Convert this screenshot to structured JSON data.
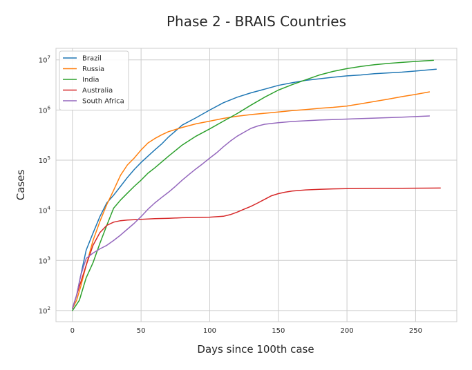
{
  "chart_data": {
    "type": "line",
    "title": "Phase 2 - BRAIS Countries",
    "xlabel": "Days since 100th case",
    "ylabel": "Cases",
    "xlim": [
      -12,
      280
    ],
    "ylim": [
      60,
      17000000
    ],
    "yscale": "log",
    "grid": true,
    "legend_position": "top-left",
    "xticks": [
      0,
      50,
      100,
      150,
      200,
      250
    ],
    "yticks": [
      {
        "value": 100,
        "base": "10",
        "exp": "2"
      },
      {
        "value": 1000,
        "base": "10",
        "exp": "3"
      },
      {
        "value": 10000,
        "base": "10",
        "exp": "4"
      },
      {
        "value": 100000,
        "base": "10",
        "exp": "5"
      },
      {
        "value": 1000000,
        "base": "10",
        "exp": "6"
      },
      {
        "value": 10000000,
        "base": "10",
        "exp": "7"
      }
    ],
    "series": [
      {
        "name": "Brazil",
        "color": "#1f77b4",
        "points": [
          [
            0,
            110
          ],
          [
            3,
            200
          ],
          [
            6,
            500
          ],
          [
            10,
            1600
          ],
          [
            15,
            3500
          ],
          [
            20,
            7500
          ],
          [
            25,
            14000
          ],
          [
            30,
            20000
          ],
          [
            35,
            30000
          ],
          [
            40,
            45000
          ],
          [
            45,
            65000
          ],
          [
            50,
            90000
          ],
          [
            55,
            120000
          ],
          [
            60,
            160000
          ],
          [
            65,
            210000
          ],
          [
            70,
            290000
          ],
          [
            75,
            380000
          ],
          [
            80,
            500000
          ],
          [
            90,
            700000
          ],
          [
            100,
            1000000
          ],
          [
            110,
            1400000
          ],
          [
            120,
            1800000
          ],
          [
            130,
            2200000
          ],
          [
            140,
            2600000
          ],
          [
            150,
            3100000
          ],
          [
            160,
            3500000
          ],
          [
            170,
            3900000
          ],
          [
            180,
            4200000
          ],
          [
            190,
            4500000
          ],
          [
            200,
            4800000
          ],
          [
            210,
            5000000
          ],
          [
            220,
            5300000
          ],
          [
            230,
            5500000
          ],
          [
            240,
            5700000
          ],
          [
            250,
            6000000
          ],
          [
            265,
            6500000
          ]
        ]
      },
      {
        "name": "Russia",
        "color": "#ff7f0e",
        "points": [
          [
            0,
            110
          ],
          [
            3,
            160
          ],
          [
            6,
            300
          ],
          [
            10,
            800
          ],
          [
            15,
            2500
          ],
          [
            20,
            6000
          ],
          [
            25,
            13000
          ],
          [
            30,
            25000
          ],
          [
            35,
            50000
          ],
          [
            40,
            80000
          ],
          [
            45,
            110000
          ],
          [
            50,
            160000
          ],
          [
            55,
            220000
          ],
          [
            60,
            270000
          ],
          [
            65,
            320000
          ],
          [
            70,
            370000
          ],
          [
            80,
            450000
          ],
          [
            90,
            530000
          ],
          [
            100,
            600000
          ],
          [
            110,
            680000
          ],
          [
            120,
            750000
          ],
          [
            130,
            810000
          ],
          [
            140,
            860000
          ],
          [
            150,
            910000
          ],
          [
            160,
            970000
          ],
          [
            170,
            1020000
          ],
          [
            180,
            1080000
          ],
          [
            190,
            1130000
          ],
          [
            200,
            1200000
          ],
          [
            210,
            1330000
          ],
          [
            220,
            1480000
          ],
          [
            230,
            1650000
          ],
          [
            240,
            1850000
          ],
          [
            250,
            2050000
          ],
          [
            260,
            2300000
          ]
        ]
      },
      {
        "name": "India",
        "color": "#2ca02c",
        "points": [
          [
            0,
            100
          ],
          [
            5,
            160
          ],
          [
            10,
            450
          ],
          [
            15,
            900
          ],
          [
            20,
            2200
          ],
          [
            25,
            5000
          ],
          [
            30,
            11000
          ],
          [
            35,
            16000
          ],
          [
            40,
            22000
          ],
          [
            45,
            30000
          ],
          [
            50,
            40000
          ],
          [
            55,
            55000
          ],
          [
            60,
            70000
          ],
          [
            70,
            120000
          ],
          [
            80,
            200000
          ],
          [
            90,
            300000
          ],
          [
            100,
            420000
          ],
          [
            110,
            600000
          ],
          [
            120,
            850000
          ],
          [
            130,
            1250000
          ],
          [
            140,
            1800000
          ],
          [
            150,
            2500000
          ],
          [
            160,
            3200000
          ],
          [
            170,
            4000000
          ],
          [
            180,
            5000000
          ],
          [
            190,
            5900000
          ],
          [
            200,
            6700000
          ],
          [
            210,
            7400000
          ],
          [
            220,
            8000000
          ],
          [
            230,
            8500000
          ],
          [
            240,
            8900000
          ],
          [
            250,
            9300000
          ],
          [
            263,
            9800000
          ]
        ]
      },
      {
        "name": "Australia",
        "color": "#d62728",
        "points": [
          [
            0,
            110
          ],
          [
            5,
            300
          ],
          [
            10,
            800
          ],
          [
            15,
            2000
          ],
          [
            20,
            3600
          ],
          [
            25,
            5000
          ],
          [
            30,
            5800
          ],
          [
            35,
            6200
          ],
          [
            40,
            6400
          ],
          [
            50,
            6600
          ],
          [
            60,
            6800
          ],
          [
            70,
            6900
          ],
          [
            80,
            7100
          ],
          [
            90,
            7200
          ],
          [
            100,
            7300
          ],
          [
            110,
            7600
          ],
          [
            115,
            8200
          ],
          [
            120,
            9200
          ],
          [
            125,
            10500
          ],
          [
            130,
            12000
          ],
          [
            135,
            14000
          ],
          [
            140,
            16500
          ],
          [
            145,
            19500
          ],
          [
            150,
            21500
          ],
          [
            155,
            23000
          ],
          [
            160,
            24200
          ],
          [
            170,
            25500
          ],
          [
            180,
            26200
          ],
          [
            190,
            26700
          ],
          [
            200,
            27000
          ],
          [
            220,
            27300
          ],
          [
            240,
            27500
          ],
          [
            260,
            27700
          ],
          [
            268,
            27800
          ]
        ]
      },
      {
        "name": "South Africa",
        "color": "#9467bd",
        "points": [
          [
            0,
            110
          ],
          [
            3,
            200
          ],
          [
            6,
            500
          ],
          [
            10,
            1100
          ],
          [
            15,
            1400
          ],
          [
            20,
            1700
          ],
          [
            25,
            2000
          ],
          [
            30,
            2500
          ],
          [
            35,
            3200
          ],
          [
            40,
            4200
          ],
          [
            45,
            5500
          ],
          [
            50,
            7500
          ],
          [
            55,
            10500
          ],
          [
            60,
            14000
          ],
          [
            65,
            18000
          ],
          [
            70,
            23000
          ],
          [
            75,
            30000
          ],
          [
            80,
            40000
          ],
          [
            85,
            52000
          ],
          [
            90,
            67000
          ],
          [
            95,
            85000
          ],
          [
            100,
            110000
          ],
          [
            105,
            140000
          ],
          [
            110,
            185000
          ],
          [
            115,
            240000
          ],
          [
            120,
            300000
          ],
          [
            125,
            360000
          ],
          [
            130,
            430000
          ],
          [
            135,
            480000
          ],
          [
            140,
            520000
          ],
          [
            150,
            560000
          ],
          [
            160,
            590000
          ],
          [
            180,
            630000
          ],
          [
            200,
            660000
          ],
          [
            220,
            690000
          ],
          [
            240,
            720000
          ],
          [
            260,
            760000
          ]
        ]
      }
    ]
  }
}
